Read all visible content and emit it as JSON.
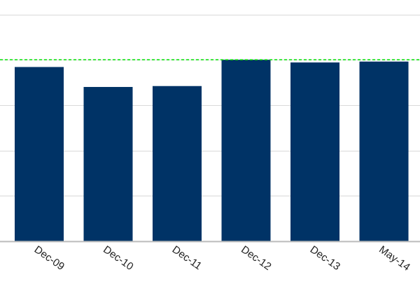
{
  "chart_data": {
    "type": "bar",
    "categories": [
      "Dec-09",
      "Dec-10",
      "Dec-11",
      "Dec-12",
      "Dec-13",
      "May-14"
    ],
    "values": [
      96,
      85,
      85.5,
      100,
      98.5,
      99
    ],
    "ylim": [
      0,
      125
    ],
    "y_gridlines": [
      0,
      25,
      50,
      75,
      100,
      125
    ],
    "reference_line": {
      "value": 100,
      "color": "#00e000",
      "style": "dashed"
    },
    "grid": true,
    "legend": "none",
    "bar_color": "#003366",
    "grid_color": "#d9d9d9",
    "axis_color": "#bbbbbb"
  }
}
